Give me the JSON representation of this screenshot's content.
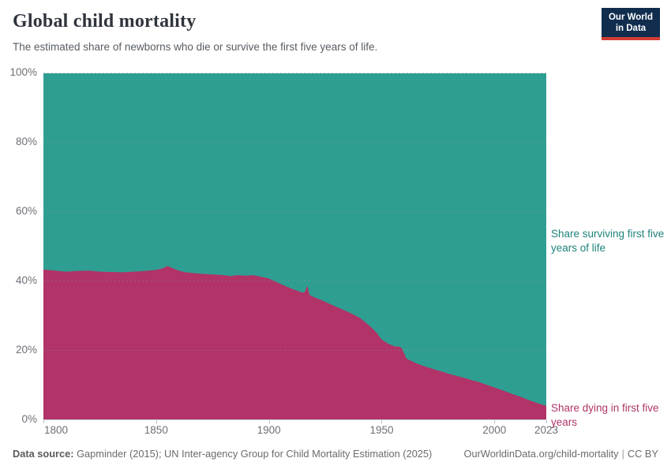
{
  "header": {
    "title": "Global child mortality",
    "subtitle": "The estimated share of newborns who die or survive the first five years of life.",
    "logo": {
      "line1": "Our World",
      "line2": "in Data",
      "bg_color": "#102d4e",
      "accent_color": "#d13b33"
    }
  },
  "chart_data": {
    "type": "area",
    "stacked": true,
    "title": "Global child mortality",
    "xlim": [
      1800,
      2023
    ],
    "ylim": [
      0,
      100
    ],
    "x_ticks": [
      1800,
      1850,
      1900,
      1950,
      2000,
      2023
    ],
    "y_ticks": [
      0,
      20,
      40,
      60,
      80,
      100
    ],
    "y_tick_suffix": "%",
    "grid": "horizontal-dashed",
    "legend_position": "right-annotations",
    "x": [
      1800,
      1805,
      1810,
      1815,
      1820,
      1825,
      1830,
      1835,
      1840,
      1845,
      1850,
      1853,
      1855,
      1857,
      1860,
      1863,
      1866,
      1870,
      1875,
      1880,
      1883,
      1886,
      1890,
      1893,
      1896,
      1900,
      1903,
      1906,
      1910,
      1913,
      1915,
      1916,
      1917,
      1918,
      1920,
      1923,
      1926,
      1930,
      1933,
      1936,
      1940,
      1943,
      1946,
      1948,
      1950,
      1953,
      1956,
      1958,
      1959,
      1960,
      1961,
      1963,
      1966,
      1970,
      1973,
      1976,
      1980,
      1984,
      1988,
      1990,
      1993,
      1996,
      2000,
      2004,
      2008,
      2012,
      2016,
      2020,
      2023
    ],
    "series": [
      {
        "name": "Share dying in first five years",
        "color": "#b13367",
        "text_color": "#b03467",
        "values": [
          43.2,
          42.9,
          42.6,
          42.8,
          42.9,
          42.6,
          42.5,
          42.4,
          42.6,
          42.8,
          43.1,
          43.6,
          44.2,
          43.7,
          42.9,
          42.4,
          42.2,
          42.0,
          41.8,
          41.6,
          41.3,
          41.6,
          41.4,
          41.6,
          41.2,
          40.6,
          39.7,
          38.8,
          37.7,
          37.0,
          36.5,
          36.8,
          38.6,
          35.9,
          35.2,
          34.5,
          33.6,
          32.4,
          31.6,
          30.7,
          29.4,
          27.9,
          26.2,
          24.8,
          23.0,
          21.8,
          21.0,
          21.0,
          20.4,
          19.0,
          17.5,
          16.9,
          16.0,
          15.1,
          14.5,
          13.9,
          13.1,
          12.4,
          11.7,
          11.3,
          10.8,
          10.1,
          9.2,
          8.3,
          7.3,
          6.4,
          5.4,
          4.5,
          3.9
        ]
      },
      {
        "name": "Share surviving first five years of life",
        "color": "#2f9e92",
        "text_color": "#1f837b",
        "values": [
          56.8,
          57.1,
          57.4,
          57.2,
          57.1,
          57.4,
          57.5,
          57.6,
          57.4,
          57.2,
          56.9,
          56.4,
          55.8,
          56.3,
          57.1,
          57.6,
          57.8,
          58.0,
          58.2,
          58.4,
          58.7,
          58.4,
          58.6,
          58.4,
          58.8,
          59.4,
          60.3,
          61.2,
          62.3,
          63.0,
          63.5,
          63.2,
          61.4,
          64.1,
          64.8,
          65.5,
          66.4,
          67.6,
          68.4,
          69.3,
          70.6,
          72.1,
          73.8,
          75.2,
          77.0,
          78.2,
          79.0,
          79.0,
          79.6,
          81.0,
          82.5,
          83.1,
          84.0,
          84.9,
          85.5,
          86.1,
          86.9,
          87.6,
          88.3,
          88.7,
          89.2,
          89.9,
          90.8,
          91.7,
          92.7,
          93.6,
          94.6,
          95.5,
          96.1
        ]
      }
    ]
  },
  "footer": {
    "source_label": "Data source:",
    "source_text": "Gapminder (2015); UN Inter-agency Group for Child Mortality Estimation (2025)",
    "url": "OurWorldinData.org/child-mortality",
    "separator": "|",
    "license": "CC BY"
  }
}
